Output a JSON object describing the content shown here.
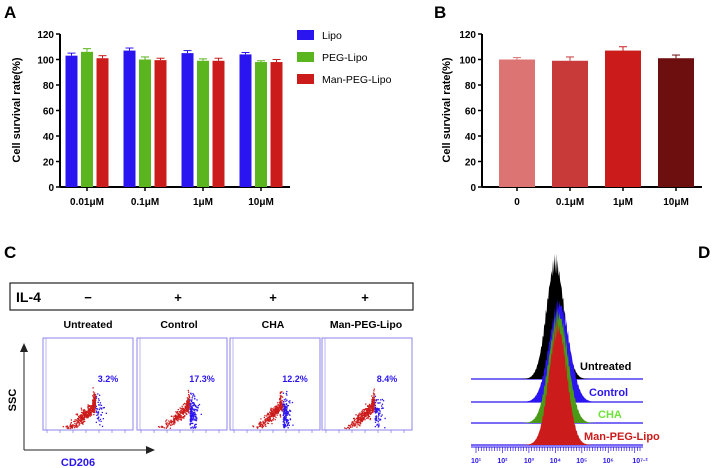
{
  "panel_labels": [
    "A",
    "B",
    "C",
    "D"
  ],
  "colors": {
    "lipo": "#2a14f0",
    "peg": "#5ab51e",
    "man": "#cc1b1b",
    "b_bars": [
      "#dc7474",
      "#c83a3a",
      "#cc1b1b",
      "#6e0f0f"
    ],
    "gate_blue": "#2a14f0",
    "scatter_red": "#cc1b1b",
    "axis_blue": "#3b2be0",
    "cha_label": "#6ee23a"
  },
  "chart_data": [
    {
      "type": "bar",
      "panel": "A",
      "categories": [
        "0.01μM",
        "0.1μM",
        "1μM",
        "10μM"
      ],
      "series": [
        {
          "name": "Lipo",
          "values": [
            103,
            107,
            105,
            104
          ],
          "errors": [
            2,
            2,
            2,
            1.5
          ]
        },
        {
          "name": "PEG-Lipo",
          "values": [
            106,
            100,
            99,
            98
          ],
          "errors": [
            2.5,
            2,
            1.5,
            1
          ]
        },
        {
          "name": "Man-PEG-Lipo",
          "values": [
            101,
            99.5,
            99,
            98
          ],
          "errors": [
            2,
            1.5,
            2,
            2
          ]
        }
      ],
      "ylabel": "Cell survival rate(%)",
      "ylim": [
        0,
        120
      ],
      "yticks": [
        0,
        20,
        40,
        60,
        80,
        100,
        120
      ],
      "legend": "top-right"
    },
    {
      "type": "bar",
      "panel": "B",
      "categories": [
        "0",
        "0.1μM",
        "1μM",
        "10μM"
      ],
      "values": [
        100,
        99,
        107,
        101
      ],
      "errors": [
        1.5,
        3,
        3,
        2.5
      ],
      "ylabel": "Cell survival rate(%)",
      "ylim": [
        0,
        120
      ],
      "yticks": [
        0,
        20,
        40,
        60,
        80,
        100,
        120
      ]
    },
    {
      "type": "scatter",
      "panel": "C",
      "row_label": "IL-4",
      "il4": [
        "−",
        "+",
        "+",
        "+"
      ],
      "groups": [
        "Untreated",
        "Control",
        "CHA",
        "Man-PEG-Lipo"
      ],
      "gate_percent": [
        "3.2%",
        "17.3%",
        "12.2%",
        "8.4%"
      ],
      "gate_fraction": [
        0.032,
        0.173,
        0.122,
        0.084
      ],
      "xlabel": "CD206",
      "ylabel": "SSC"
    },
    {
      "type": "area",
      "panel": "D",
      "series": [
        {
          "name": "Untreated",
          "peak_log": 4.0,
          "sigma": 0.33
        },
        {
          "name": "Control",
          "peak_log": 4.15,
          "sigma": 0.38
        },
        {
          "name": "CHA",
          "peak_log": 4.12,
          "sigma": 0.36
        },
        {
          "name": "Man-PEG-Lipo",
          "peak_log": 4.1,
          "sigma": 0.34
        }
      ],
      "xticks": [
        "10¹",
        "10²",
        "10³",
        "10⁴",
        "10⁵",
        "10⁶",
        "10⁷·²"
      ],
      "xlim_log": [
        1,
        7.2
      ]
    }
  ]
}
